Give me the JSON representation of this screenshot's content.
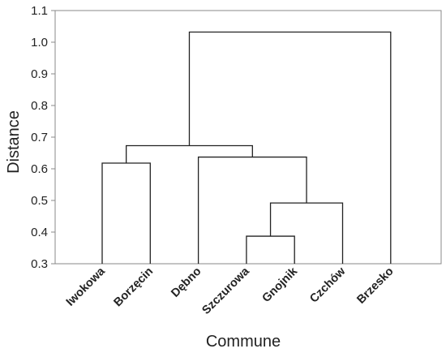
{
  "chart_data": {
    "type": "dendrogram",
    "xlabel": "Commune",
    "ylabel": "Distance",
    "ylim": [
      0.3,
      1.1
    ],
    "yticks": [
      "0.3",
      "0.4",
      "0.5",
      "0.6",
      "0.7",
      "0.8",
      "0.9",
      "1.0",
      "1.1"
    ],
    "leaves": [
      "Iwokowa",
      "Borzęcin",
      "Dębno",
      "Szczurowa",
      "Gnojnik",
      "Czchów",
      "Brzesko"
    ],
    "merges": [
      {
        "id": "m1",
        "left": "Szczurowa",
        "right": "Gnojnik",
        "height": 0.387
      },
      {
        "id": "m2",
        "left": "m1",
        "right": "Czchów",
        "height": 0.492
      },
      {
        "id": "m3",
        "left": "Iwokowa",
        "right": "Borzęcin",
        "height": 0.618
      },
      {
        "id": "m4",
        "left": "Dębno",
        "right": "m2",
        "height": 0.637
      },
      {
        "id": "m5",
        "left": "m3",
        "right": "m4",
        "height": 0.673
      },
      {
        "id": "m6",
        "left": "m5",
        "right": "Brzesko",
        "height": 1.032
      }
    ],
    "colors": {
      "frame": "#888888",
      "link": "#222222",
      "text": "#222222"
    }
  }
}
